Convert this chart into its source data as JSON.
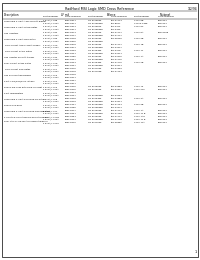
{
  "title": "RadHard MSI Logic SMD Cross Reference",
  "page_num": "1/2/94",
  "background_color": "#ffffff",
  "border_color": "#000000",
  "text_color": "#000000",
  "col_header1": [
    "Description",
    "LF mil",
    "Biforce",
    "National"
  ],
  "col_header2": [
    "Part Number",
    "SMD Number",
    "Part Number",
    "SMD Number",
    "Part Number",
    "SMD Number"
  ],
  "rows": [
    {
      "desc": "Quadruple 2-Input AND Schmitt-Trigger",
      "data": [
        [
          "F 374A/L 388",
          "5962-8811",
          "CD 5400885",
          "FAC-47714",
          "74HC 8B",
          "54CCT21"
        ],
        [
          "F 374A/L 374A",
          "5962-8811",
          "CD 5400885E",
          "FAC-8807",
          "74HCK 748E",
          "54CCT21"
        ]
      ]
    },
    {
      "desc": "Quadruple 2-Input NAND Gates",
      "data": [
        [
          "F 374A/L 362",
          "5962-8814",
          "CD 5400805",
          "FAC-4474",
          "74HC 8C",
          "54CCT21"
        ],
        [
          "F 374A/L 374A",
          "5962-8811",
          "CD 5400885E",
          "FAC-4443",
          "",
          ""
        ]
      ]
    },
    {
      "desc": "Hex Inverters",
      "data": [
        [
          "F 374A/L 384",
          "5962-8974",
          "CD 5400945",
          "FAC-47717",
          "74HC 8A",
          "54CCT098"
        ],
        [
          "F 374A/L 374A",
          "5962-8217",
          "CD 5400885E",
          "FAC-47717",
          "",
          ""
        ]
      ]
    },
    {
      "desc": "Quadruple 2-Input NOR Gates",
      "data": [
        [
          "F 374A/L 349",
          "5962-8418",
          "CD 5400985",
          "FAC-45040",
          "74HC 9B",
          "54CCT21"
        ],
        [
          "F 374A/L 374A",
          "5962-8815",
          "CD 5400885E",
          "",
          "",
          ""
        ]
      ]
    },
    {
      "desc": "Triple 4-Input AND Schmitt-Trigger",
      "data": [
        [
          "F 374A/L 3C9",
          "5962-8878",
          "CD 5400985",
          "FAC-47717",
          "74HC 1B",
          "54CCT21"
        ],
        [
          "F 374A/L 374A",
          "5962-8871",
          "CD 5400885E",
          "FAC-47517",
          "",
          ""
        ]
      ]
    },
    {
      "desc": "Triple 4-Input NAND Gates",
      "data": [
        [
          "F 374A/L 3C1",
          "5962-8423",
          "CD 5400485",
          "FAC-47C8",
          "74HC 11",
          "54CCT21"
        ],
        [
          "F 374A/L 374A",
          "5962-8431",
          "CD 5400885E",
          "FAC-47511",
          "",
          ""
        ]
      ]
    },
    {
      "desc": "Hex Inverter Schmitt-trigger",
      "data": [
        [
          "F 374A/L 314",
          "5962-8485",
          "CD 5400985",
          "FAC-47515",
          "74HC 1A",
          "54CCT21"
        ],
        [
          "F 374A/L 374A",
          "5962-8427",
          "CD 5400885E",
          "FAC-47715",
          "",
          ""
        ]
      ]
    },
    {
      "desc": "Dual 4-Input NAND Gates",
      "data": [
        [
          "F 374A/L 3C8",
          "5962-8424",
          "CD 5400485",
          "FAC-47775",
          "74HC 2B",
          "54CCT21"
        ],
        [
          "F 374A/L 374A",
          "5962-8427",
          "CD 5400885E",
          "FAC-47511",
          "",
          ""
        ]
      ]
    },
    {
      "desc": "Triple 4-Input NOR Gates",
      "data": [
        [
          "F 374A/L 3F7",
          "5962-8475",
          "CD 5457985",
          "FAC-47969",
          "",
          ""
        ],
        [
          "F 374A/L 374A",
          "5962-8478",
          "CD 5457988",
          "FAC-47794",
          "",
          ""
        ]
      ]
    },
    {
      "desc": "Hex Noninverting Buffers",
      "data": [
        [
          "F 374A/L 3F0",
          "5962-8418",
          "",
          "",
          "",
          ""
        ],
        [
          "F 374A/L 374A",
          "5962-8911",
          "",
          "",
          "",
          ""
        ]
      ]
    },
    {
      "desc": "4-Bit, FIFO/FILO/PISO latches",
      "data": [
        [
          "F 374A/L 3F4",
          "5962-8997",
          "",
          "",
          "",
          ""
        ],
        [
          "F 374A/L 374A",
          "5962-8811",
          "",
          "",
          "",
          ""
        ]
      ]
    },
    {
      "desc": "Dual D-flip-flops with Clear & Preset",
      "data": [
        [
          "F 374A/L 3F3",
          "5962-8915",
          "CD 5400985",
          "FAC-47852",
          "74HC 7S",
          "54CCT21"
        ],
        [
          "F 374A/L 374A",
          "5962-8915",
          "CD 5400985",
          "FAC-47813",
          "74HC 21S",
          "54CCT21"
        ]
      ]
    },
    {
      "desc": "4-Bit comparators",
      "data": [
        [
          "F 374A/L 3F7",
          "5962-8914",
          "",
          "",
          "",
          ""
        ],
        [
          "F 374A/L 374A",
          "5962-8427",
          "CD 5400885E",
          "FAC-47064",
          "",
          ""
        ]
      ]
    },
    {
      "desc": "Quadruple 2-Input Exclusive-OR Gates",
      "data": [
        [
          "F 374A/L 3F8",
          "5962-8918",
          "CD 5400485",
          "FAC-47853",
          "74HC 3A",
          "54CCT21"
        ],
        [
          "F 374A/L 374A",
          "5962-8419",
          "CD 5400885E",
          "FAC-47511",
          "",
          ""
        ]
      ]
    },
    {
      "desc": "Dual JK Flip-flops",
      "data": [
        [
          "F 374A/L 3F7",
          "5962-5427",
          "CD 5400985E",
          "FAC-47764",
          "74HC 9B",
          "54CCT21"
        ],
        [
          "F 374A/L 374A",
          "5962-8450",
          "CD 5400885E",
          "FAC-47571",
          "",
          ""
        ]
      ]
    },
    {
      "desc": "Quadruple 2-Input Exclusive-NOR Registers",
      "data": [
        [
          "F 374A/L 3C1",
          "5962-8417",
          "CD 5400985",
          "FAC-47714",
          "74HC 1A",
          "54CCT21"
        ],
        [
          "F 374A/L 374A",
          "5962-8461",
          "CD 5400885E",
          "FAC-47748",
          "74HC 11 B",
          "54CCT24"
        ]
      ]
    },
    {
      "desc": "3-Line to 8-Line Standard Demultiplexers",
      "data": [
        [
          "F 374A/L 3C1B",
          "5962-8354",
          "CD 5400985",
          "FAC-47717",
          "74HC 1A8",
          "54CCT21"
        ],
        [
          "F 374A/L 374A",
          "5962-8441",
          "CD 5400885E",
          "FAC-47748",
          "74HC 11 B",
          "54CCT24"
        ]
      ]
    },
    {
      "desc": "Dual 1-to-4 Line Function Demultiplexers",
      "data": [
        [
          "F 374A/L 3C10",
          "5962-8416",
          "CD 5457983",
          "FAC-4888A",
          "74HC 11A",
          "54CCT21"
        ]
      ]
    }
  ]
}
